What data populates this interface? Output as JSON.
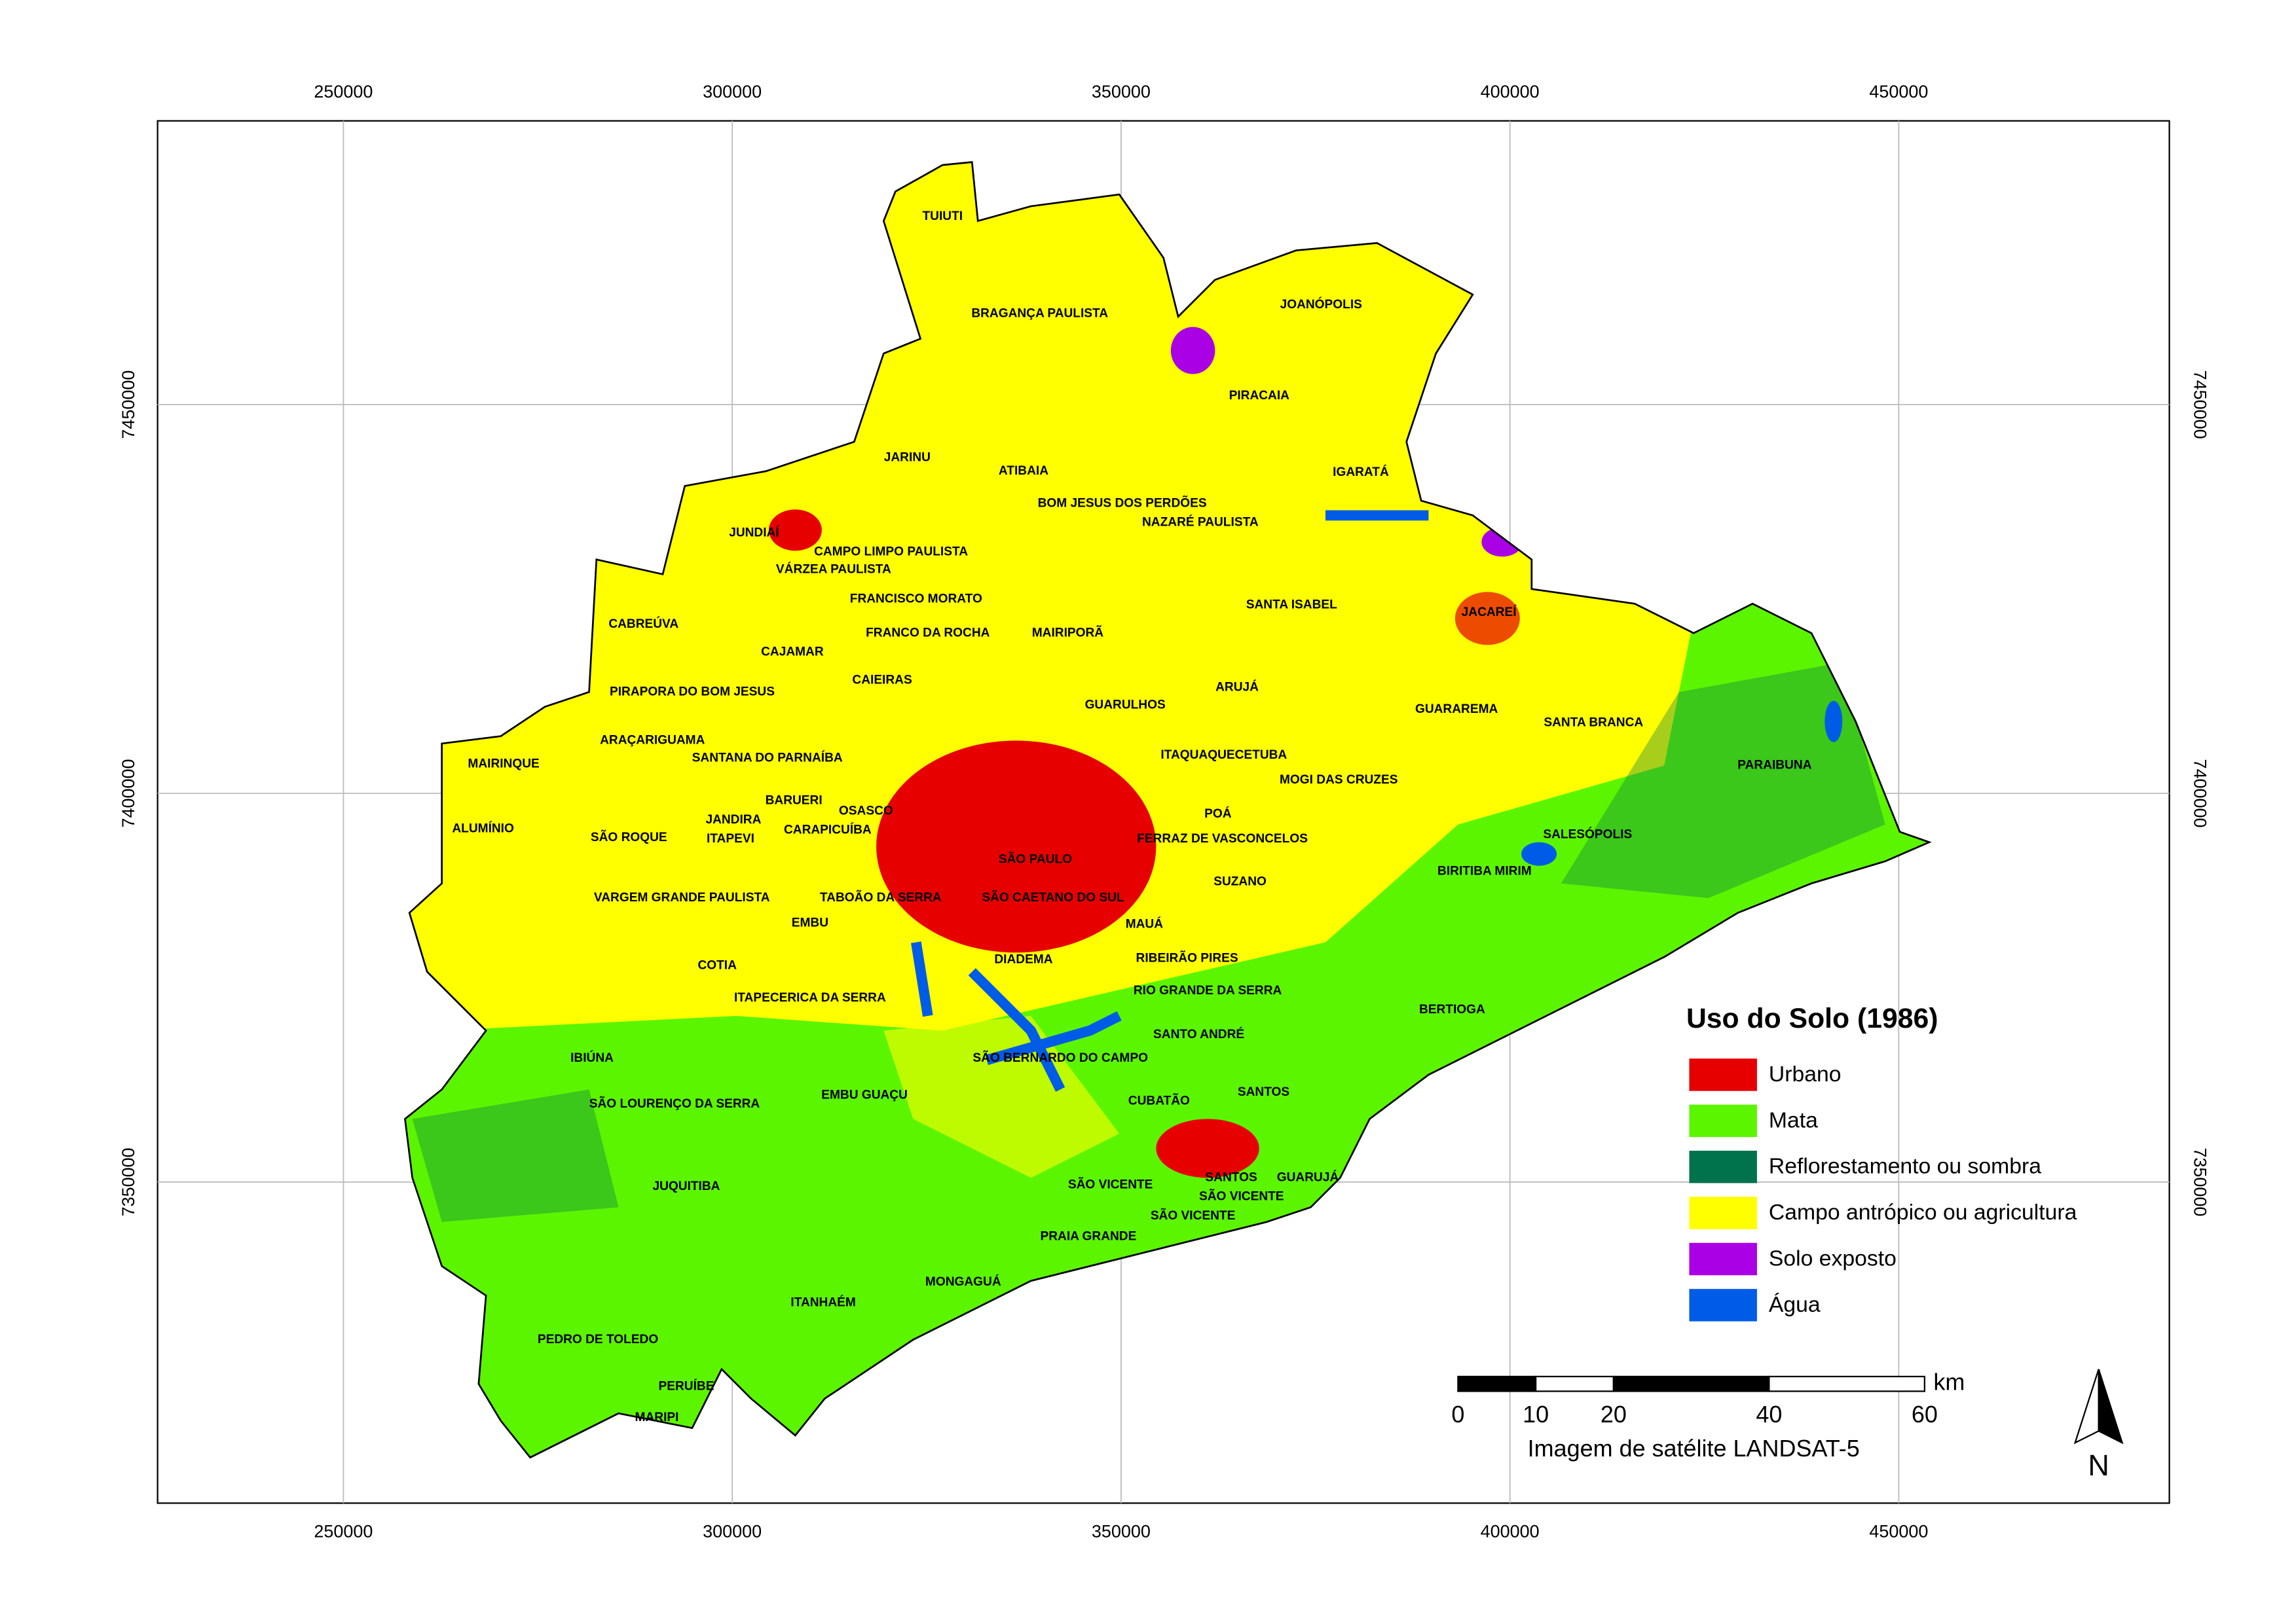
{
  "map": {
    "xlim": [
      226100,
      484800
    ],
    "ylim": [
      7308700,
      7486500
    ],
    "xticks": [
      250000,
      300000,
      350000,
      400000,
      450000
    ],
    "yticks": [
      7350000,
      7400000,
      7450000
    ],
    "grid": true,
    "municipalities": [
      "TUIUTI",
      "BRAGANÇA PAULISTA",
      "JOANÓPOLIS",
      "PIRACAIA",
      "JARINU",
      "ATIBAIA",
      "IGARATÁ",
      "BOM JESUS DOS PERDÕES",
      "NAZARÉ PAULISTA",
      "JUNDIAÍ",
      "CAMPO LIMPO PAULISTA",
      "VÁRZEA PAULISTA",
      "FRANCISCO MORATO",
      "SANTA ISABEL",
      "JACAREÍ",
      "CABREÚVA",
      "FRANCO DA ROCHA",
      "MAIRIPORÃ",
      "CAJAMAR",
      "CAIEIRAS",
      "ARUJÁ",
      "GUARULHOS",
      "PIRAPORA DO BOM JESUS",
      "GUARAREMA",
      "SANTA BRANCA",
      "ARAÇARIGUAMA",
      "SANTANA DO PARNAÍBA",
      "ITAQUAQUECETUBA",
      "MAIRINQUE",
      "PARAIBUNA",
      "MOGI DAS CRUZES",
      "BARUERI",
      "OSASCO",
      "POÁ",
      "JANDIRA",
      "ALUMÍNIO",
      "ITAPEVI",
      "CARAPICUÍBA",
      "SÃO ROQUE",
      "FERRAZ DE VASCONCELOS",
      "SALESÓPOLIS",
      "SÃO PAULO",
      "BIRITIBA MIRIM",
      "VARGEM GRANDE PAULISTA",
      "TABOÃO DA SERRA",
      "SÃO CAETANO DO SUL",
      "SUZANO",
      "EMBU",
      "MAUÁ",
      "COTIA",
      "DIADEMA",
      "RIBEIRÃO PIRES",
      "ITAPECERICA DA SERRA",
      "RIO GRANDE DA SERRA",
      "BERTIOGA",
      "SANTO ANDRÉ",
      "IBIÚNA",
      "SÃO BERNARDO DO CAMPO",
      "SANTOS",
      "SÃO LOURENÇO DA SERRA",
      "EMBU GUAÇU",
      "CUBATÃO",
      "SANTOS",
      "GUARUJÁ",
      "SÃO VICENTE",
      "SÃO VICENTE",
      "SÃO VICENTE",
      "JUQUITIBA",
      "PRAIA GRANDE",
      "MONGAGUÁ",
      "ITANHAÉM",
      "PEDRO DE TOLEDO",
      "PERUÍBE",
      "MARIPI"
    ]
  },
  "legend": {
    "title": "Uso do Solo (1986)",
    "items": [
      {
        "name": "Urbano",
        "color": "#e60000"
      },
      {
        "name": "Mata",
        "color": "#5cf500"
      },
      {
        "name": "Reflorestamento ou sombra",
        "color": "#00734c"
      },
      {
        "name": "Campo antrópico ou agricultura",
        "color": "#ffff00"
      },
      {
        "name": "Solo exposto",
        "color": "#a900e6"
      },
      {
        "name": "Água",
        "color": "#005ce6"
      }
    ]
  },
  "scale_bar": {
    "ticks": [
      0,
      10,
      20,
      40,
      60
    ],
    "unit": "km",
    "caption": "Imagem de satélite LANDSAT-5"
  },
  "north": "N"
}
